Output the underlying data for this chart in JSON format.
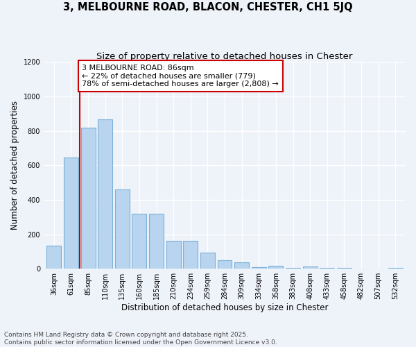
{
  "title_line1": "3, MELBOURNE ROAD, BLACON, CHESTER, CH1 5JQ",
  "title_line2": "Size of property relative to detached houses in Chester",
  "xlabel": "Distribution of detached houses by size in Chester",
  "ylabel": "Number of detached properties",
  "categories": [
    "36sqm",
    "61sqm",
    "85sqm",
    "110sqm",
    "135sqm",
    "160sqm",
    "185sqm",
    "210sqm",
    "234sqm",
    "259sqm",
    "284sqm",
    "309sqm",
    "334sqm",
    "358sqm",
    "383sqm",
    "408sqm",
    "433sqm",
    "458sqm",
    "482sqm",
    "507sqm",
    "532sqm"
  ],
  "values": [
    135,
    645,
    820,
    865,
    460,
    320,
    320,
    160,
    160,
    95,
    48,
    38,
    10,
    15,
    3,
    13,
    3,
    3,
    2,
    2,
    5
  ],
  "bar_color": "#b8d4ee",
  "bar_edge_color": "#7ab0d8",
  "vline_x_index": 2,
  "vline_color": "#cc0000",
  "annotation_text": "3 MELBOURNE ROAD: 86sqm\n← 22% of detached houses are smaller (779)\n78% of semi-detached houses are larger (2,808) →",
  "annotation_box_color": "white",
  "annotation_box_edge_color": "#cc0000",
  "ylim": [
    0,
    1200
  ],
  "yticks": [
    0,
    200,
    400,
    600,
    800,
    1000,
    1200
  ],
  "background_color": "#eef2f9",
  "grid_color": "white",
  "footer_text": "Contains HM Land Registry data © Crown copyright and database right 2025.\nContains public sector information licensed under the Open Government Licence v3.0.",
  "title_fontsize": 10.5,
  "subtitle_fontsize": 9.5,
  "axis_label_fontsize": 8.5,
  "tick_fontsize": 7,
  "annotation_fontsize": 8,
  "footer_fontsize": 6.5
}
